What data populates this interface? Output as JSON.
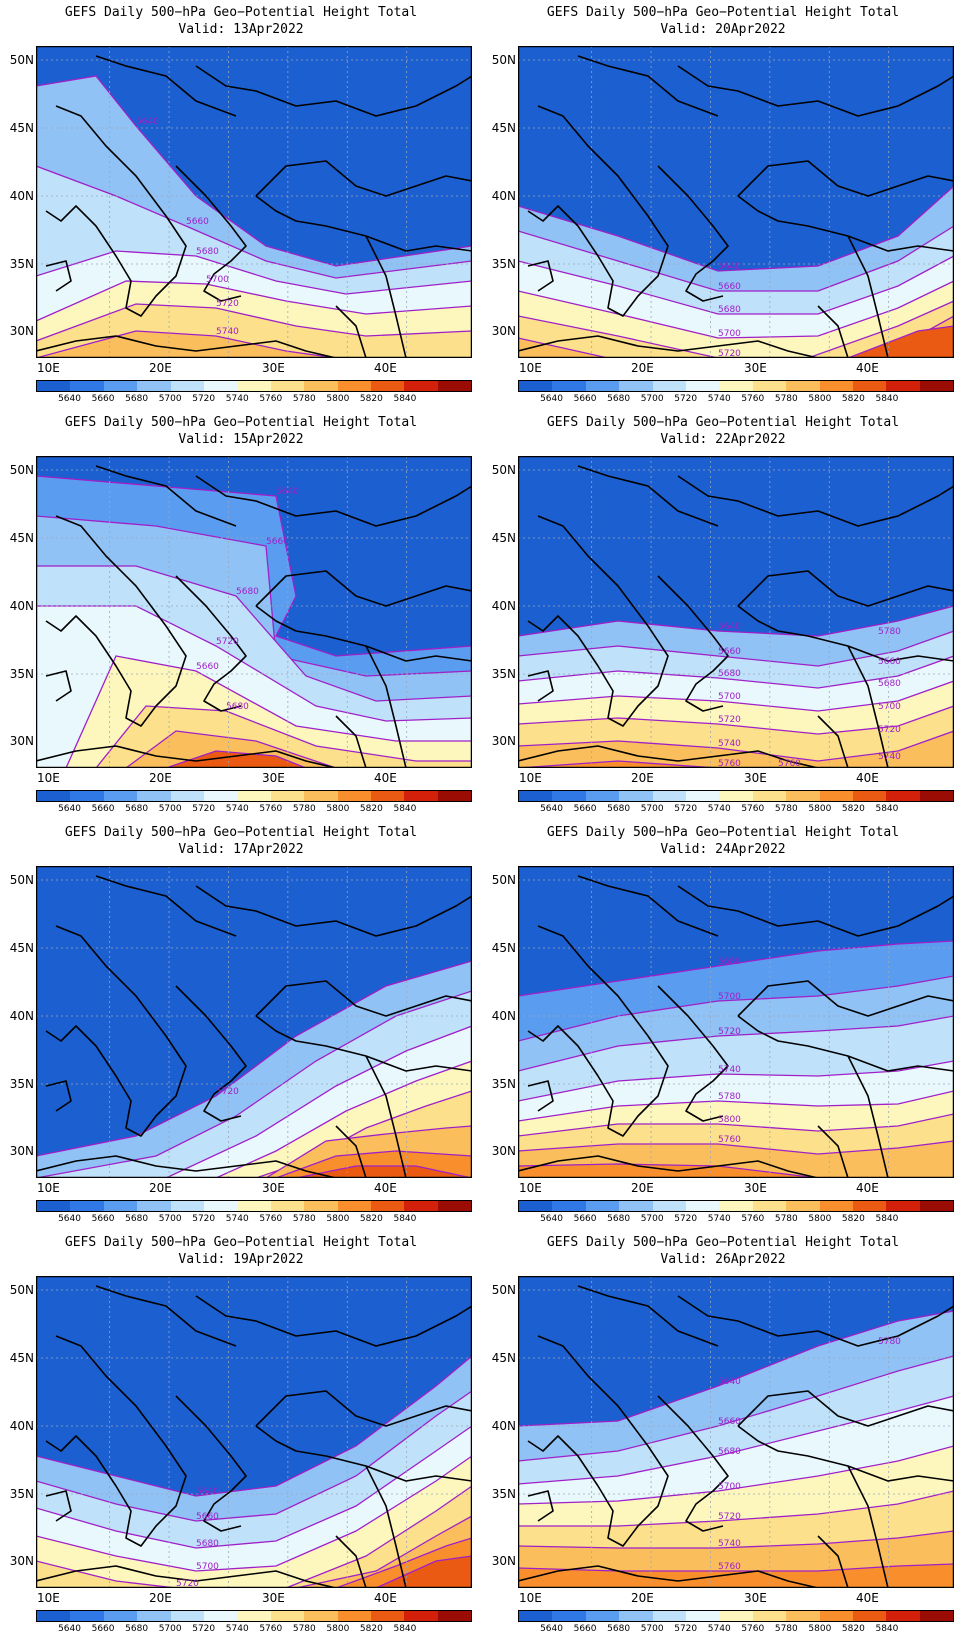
{
  "title_text": "GEFS Daily 500−hPa Geo−Potential Height Total",
  "lat_ticks": [
    "50N",
    "45N",
    "40N",
    "35N",
    "30N"
  ],
  "lon_ticks": [
    "10E",
    "20E",
    "30E",
    "40E"
  ],
  "colorbar": {
    "labels": [
      "5640",
      "5660",
      "5680",
      "5700",
      "5720",
      "5740",
      "5760",
      "5780",
      "5800",
      "5820",
      "5840"
    ],
    "colors": [
      "#1c5fd0",
      "#2f78e6",
      "#5a9cf0",
      "#90c2f5",
      "#bfe2fa",
      "#e9f8fd",
      "#fdf7bd",
      "#fde08b",
      "#fbbe5c",
      "#f88f2c",
      "#ea5a12",
      "#d2200a",
      "#9b0c05"
    ]
  },
  "panels": [
    {
      "valid": "Valid: 13Apr2022",
      "contour_labels": [
        "5640",
        "5660",
        "5680",
        "5700",
        "5720",
        "5740"
      ]
    },
    {
      "valid": "Valid: 20Apr2022",
      "contour_labels": [
        "5640",
        "5660",
        "5680",
        "5700",
        "5720"
      ]
    },
    {
      "valid": "Valid: 15Apr2022",
      "contour_labels": [
        "5640",
        "5660",
        "5680",
        "5720",
        "5660",
        "5680"
      ]
    },
    {
      "valid": "Valid: 22Apr2022",
      "contour_labels": [
        "5640",
        "5660",
        "5680",
        "5700",
        "5720",
        "5740",
        "5760",
        "5780",
        "5660",
        "5680",
        "5700",
        "5720",
        "5740",
        "5760"
      ]
    },
    {
      "valid": "Valid: 17Apr2022",
      "contour_labels": [
        "5720"
      ]
    },
    {
      "valid": "Valid: 24Apr2022",
      "contour_labels": [
        "5680",
        "5700",
        "5720",
        "5740",
        "5780",
        "5800",
        "5760"
      ]
    },
    {
      "valid": "Valid: 19Apr2022",
      "contour_labels": [
        "5640",
        "5660",
        "5680",
        "5700",
        "5720"
      ]
    },
    {
      "valid": "Valid: 26Apr2022",
      "contour_labels": [
        "5640",
        "5660",
        "5680",
        "5700",
        "5720",
        "5740",
        "5760",
        "5780"
      ]
    }
  ]
}
